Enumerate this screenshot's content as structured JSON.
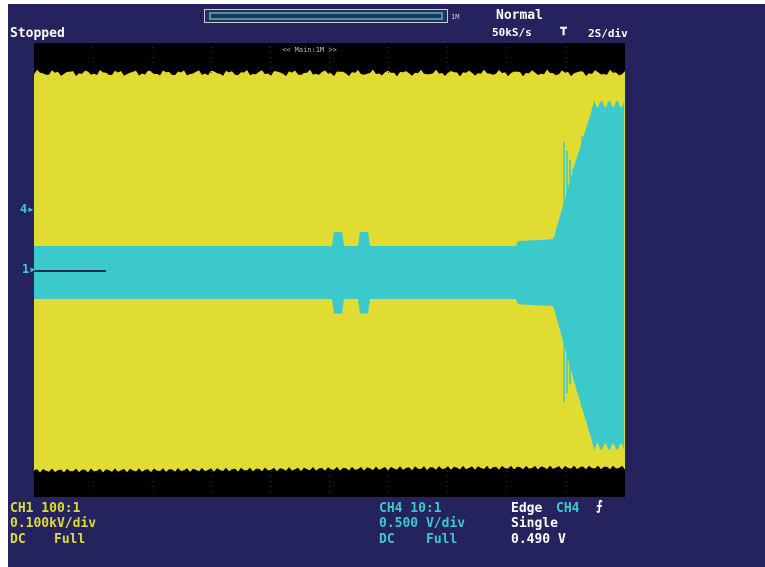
{
  "status": {
    "acquisition_state": "Stopped",
    "trigger_mode": "Normal",
    "sample_rate": "50kS/s",
    "time_per_div": "2S/div",
    "record_length_label": "1M",
    "zoom_label": "<< Main:1M >>"
  },
  "channels": {
    "ch1": {
      "probe": "CH1 100:1",
      "scale": "0.100kV/div",
      "coupling": "DC",
      "bandwidth": "Full",
      "color": "#e0dc32"
    },
    "ch4": {
      "probe": "CH4 10:1",
      "scale": "0.500 V/div",
      "coupling": "DC",
      "bandwidth": "Full",
      "color": "#3cc9cc"
    }
  },
  "trigger": {
    "type": "Edge",
    "source": "CH4",
    "slope_icon": "rising-edge-icon",
    "mode": "Single",
    "level": "0.490 V"
  },
  "markers": {
    "ch4_ground": "4",
    "ch1_ground": "1"
  },
  "colors": {
    "background": "#25235e",
    "graticule": "#000000",
    "ch1_trace": "#e0dc32",
    "ch4_trace": "#3cc9cc",
    "record_window": "#35a37d"
  }
}
